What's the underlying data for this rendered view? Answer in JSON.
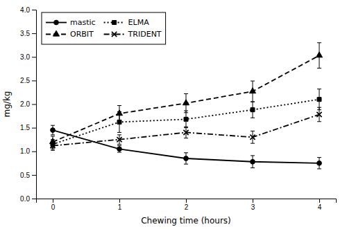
{
  "chart_data": {
    "type": "line",
    "x_label": "Chewing time (hours)",
    "y_label": "mg/kg",
    "x": [
      0,
      1,
      2,
      3,
      4
    ],
    "series": [
      {
        "name": "mastic",
        "color": "#000000",
        "line_style": "solid",
        "marker": "circle",
        "values": [
          1.45,
          1.05,
          0.85,
          0.78,
          0.75
        ],
        "yerr": [
          0.1,
          0.07,
          0.12,
          0.13,
          0.12
        ]
      },
      {
        "name": "ORBIT",
        "color": "#000000",
        "line_style": "dashed",
        "marker": "triangle",
        "values": [
          1.2,
          1.8,
          2.02,
          2.27,
          3.03
        ],
        "yerr": [
          0.12,
          0.17,
          0.2,
          0.22,
          0.27
        ]
      },
      {
        "name": "ELMA",
        "color": "#000000",
        "line_style": "dotted",
        "marker": "square",
        "values": [
          1.15,
          1.62,
          1.68,
          1.88,
          2.1
        ],
        "yerr": [
          0.1,
          0.22,
          0.18,
          0.17,
          0.22
        ]
      },
      {
        "name": "TRIDENT",
        "color": "#000000",
        "line_style": "dashdot",
        "marker": "x",
        "values": [
          1.12,
          1.25,
          1.4,
          1.3,
          1.78
        ],
        "yerr": [
          0.1,
          0.1,
          0.12,
          0.13,
          0.15
        ]
      }
    ],
    "xlim": [
      -0.25,
      4.25
    ],
    "xticks": [
      0,
      1,
      2,
      3,
      4
    ],
    "ylim": [
      0,
      4
    ],
    "yticks": [
      {
        "value": 0,
        "label": "0.0"
      },
      0.5,
      {
        "value": 1.0,
        "label": "1.0"
      },
      1.5,
      {
        "value": 2.0,
        "label": "2.0"
      },
      2.5,
      {
        "value": 3.0,
        "label": "3.0"
      },
      3.5,
      {
        "value": 4.0,
        "label": "4.0"
      }
    ],
    "grid": false,
    "legend": "upper left"
  }
}
